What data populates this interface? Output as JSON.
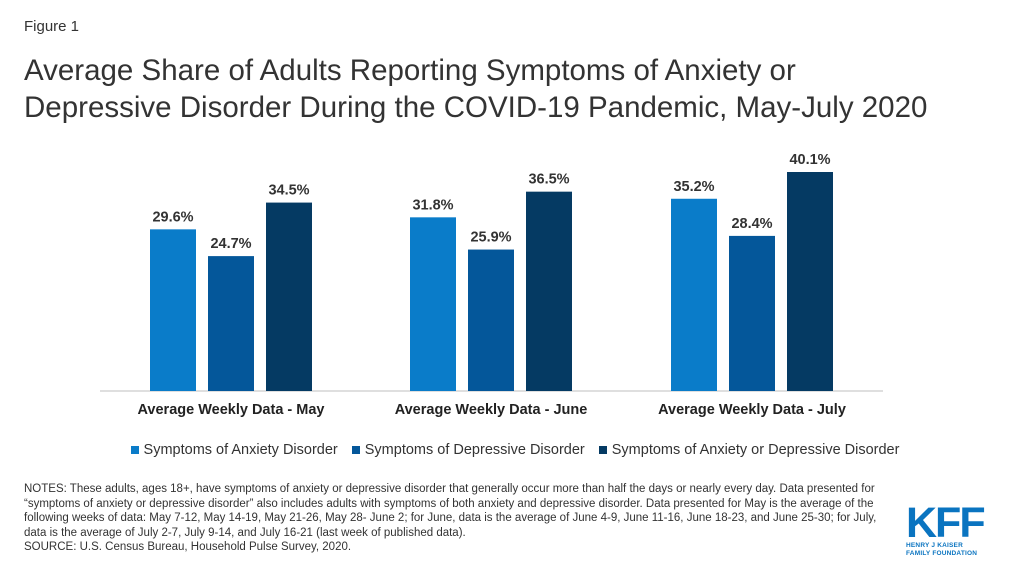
{
  "figure_label": "Figure 1",
  "title_lines": [
    "Average Share of Adults Reporting Symptoms of Anxiety or",
    "Depressive Disorder During the COVID-19 Pandemic, May-July 2020"
  ],
  "chart_data": {
    "type": "bar",
    "categories": [
      "Average Weekly Data - May",
      "Average Weekly Data - June",
      "Average Weekly Data - July"
    ],
    "series": [
      {
        "name": "Symptoms of Anxiety Disorder",
        "color": "#0a7cc9",
        "values": [
          29.6,
          31.8,
          35.2
        ],
        "labels": [
          "29.6%",
          "31.8%",
          "35.2%"
        ]
      },
      {
        "name": "Symptoms of Depressive Disorder",
        "color": "#04579a",
        "values": [
          24.7,
          25.9,
          28.4
        ],
        "labels": [
          "24.7%",
          "25.9%",
          "28.4%"
        ]
      },
      {
        "name": "Symptoms of Anxiety or Depressive Disorder",
        "color": "#053a63",
        "values": [
          34.5,
          36.5,
          40.1
        ],
        "labels": [
          "34.5%",
          "36.5%",
          "40.1%"
        ]
      }
    ],
    "ylim": [
      0,
      40.1
    ],
    "grid": false,
    "legend": "bottom"
  },
  "notes": {
    "text": "NOTES: These adults, ages 18+, have symptoms of anxiety or depressive disorder that generally occur more than half the days or nearly every day. Data presented for “symptoms of anxiety or depressive disorder” also includes adults with symptoms of both anxiety and depressive disorder. Data presented for May is the average of the following weeks of data: May 7-12, May 14-19, May 21-26, May 28- June 2; for June, data is the average of June 4-9, June 11-16, June 18-23, and June 25-30; for July, data is the average of July 2-7, July 9-14, and July 16-21 (last week of published data).",
    "source": "SOURCE: U.S. Census Bureau, Household Pulse Survey, 2020."
  },
  "logo": {
    "mark": "KFF",
    "sub_lines": [
      "HENRY J KAISER",
      "FAMILY FOUNDATION"
    ],
    "color": "#0a74c0"
  }
}
